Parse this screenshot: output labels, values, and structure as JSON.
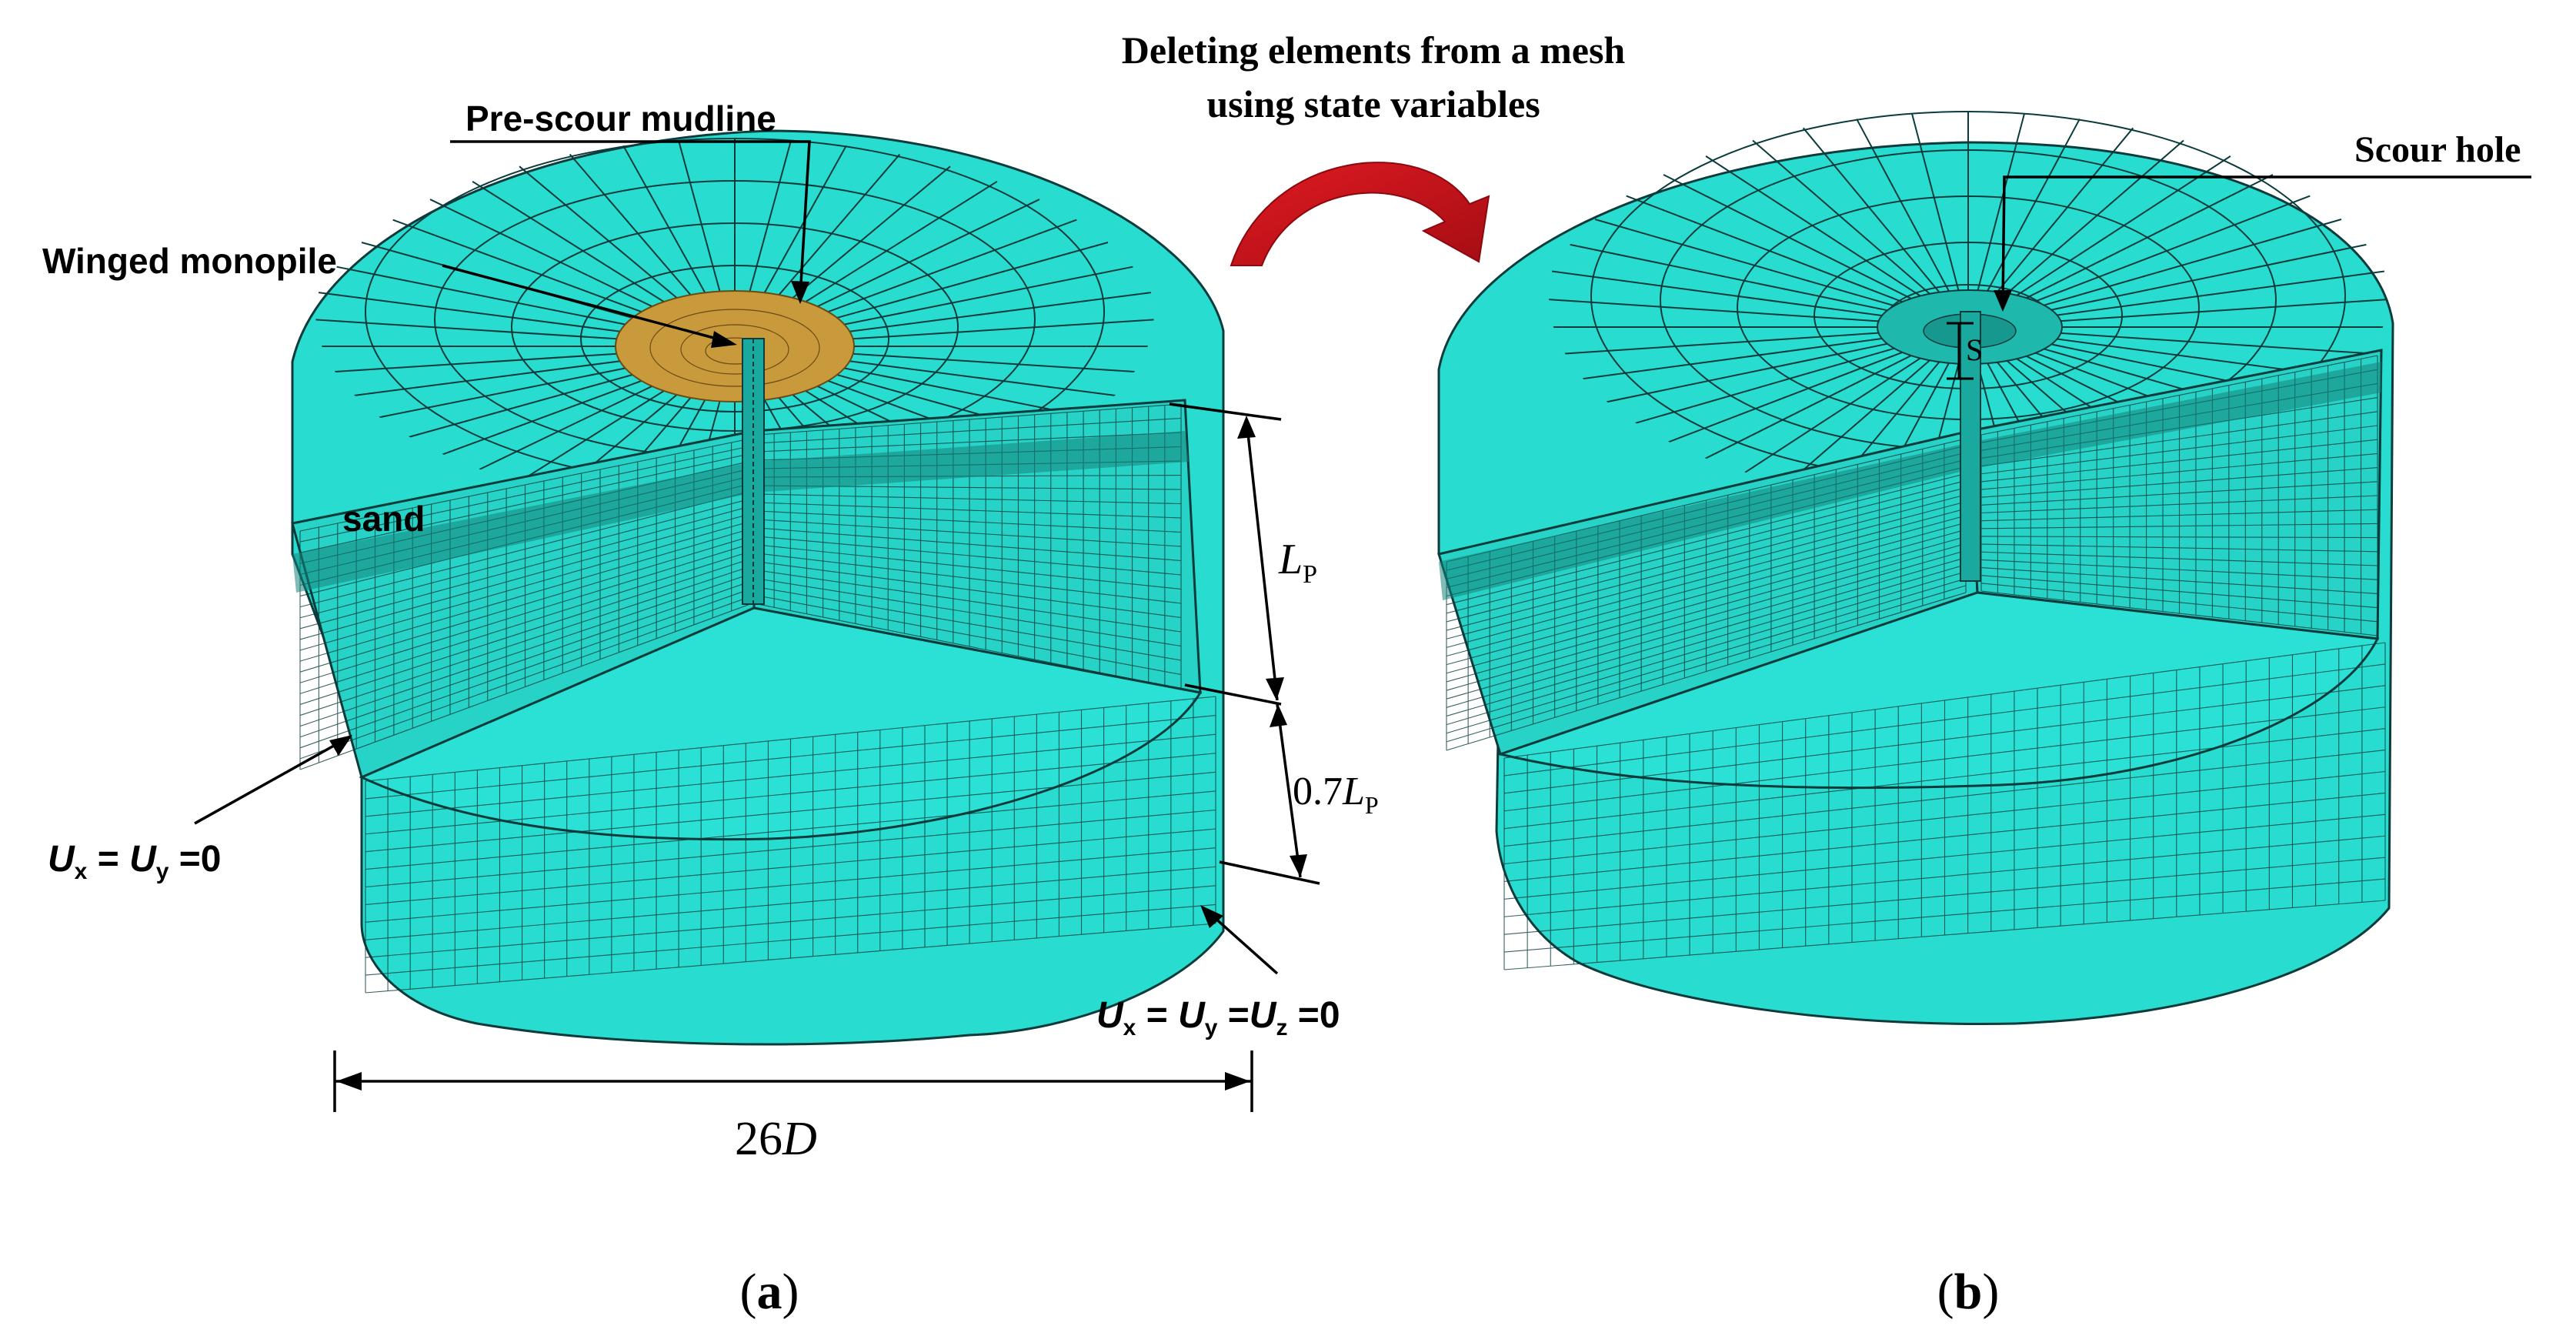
{
  "title": {
    "line1": "Deleting elements from a mesh",
    "line2": "using state variables"
  },
  "panel_a": {
    "pre_scour_label": "Pre-scour mudline",
    "monopile_label": "Winged monopile",
    "sand_label": "sand",
    "lp_main": "L",
    "lp_sub": "P",
    "lp07_prefix": "0.7",
    "lp07_main": "L",
    "lp07_sub": "P",
    "bc_side": {
      "u1": "U",
      "s1": "x",
      "eq1": " = ",
      "u2": "U",
      "s2": "y",
      "eq2": " =0"
    },
    "bc_bottom": {
      "u1": "U",
      "s1": "x",
      "eq1": " = ",
      "u2": "U",
      "s2": "y",
      "eq2": " =",
      "u3": "U",
      "s3": "z",
      "eq3": " =0"
    },
    "width_num": "26",
    "width_var": "D",
    "caption_open": "(",
    "caption_letter": "a",
    "caption_close": ")"
  },
  "panel_b": {
    "scour_hole_label": "Scour hole",
    "s_label": "S",
    "caption_open": "(",
    "caption_letter": "b",
    "caption_close": ")"
  },
  "colors": {
    "mesh_fill": "#29dcd0",
    "mesh_lines": "#0b3b3b",
    "mudline": "#c89a3c",
    "arrow": "#c8121a"
  }
}
